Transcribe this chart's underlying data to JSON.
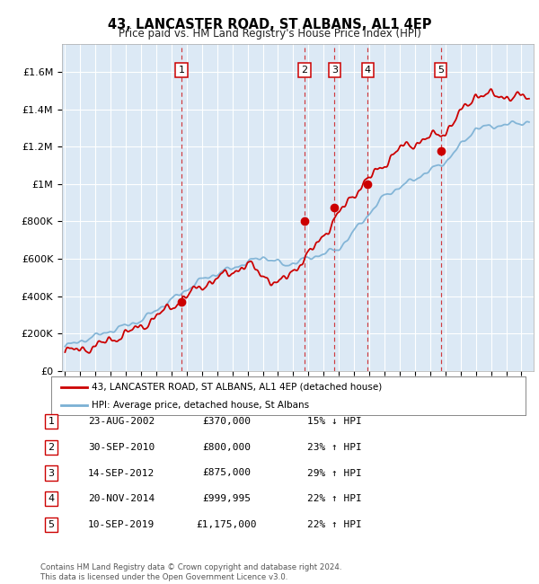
{
  "title": "43, LANCASTER ROAD, ST ALBANS, AL1 4EP",
  "subtitle": "Price paid vs. HM Land Registry's House Price Index (HPI)",
  "bg_color": "#dce9f5",
  "red_color": "#cc0000",
  "blue_color": "#7ab0d4",
  "yticks": [
    0,
    200000,
    400000,
    600000,
    800000,
    1000000,
    1200000,
    1400000,
    1600000
  ],
  "ytick_labels": [
    "£0",
    "£200K",
    "£400K",
    "£600K",
    "£800K",
    "£1M",
    "£1.2M",
    "£1.4M",
    "£1.6M"
  ],
  "ylim": [
    0,
    1750000
  ],
  "xlim_start": 1994.8,
  "xlim_end": 2025.8,
  "sales": [
    {
      "year": 2002.65,
      "price": 370000,
      "label": "1"
    },
    {
      "year": 2010.75,
      "price": 800000,
      "label": "2"
    },
    {
      "year": 2012.71,
      "price": 875000,
      "label": "3"
    },
    {
      "year": 2014.9,
      "price": 999995,
      "label": "4"
    },
    {
      "year": 2019.7,
      "price": 1175000,
      "label": "5"
    }
  ],
  "table_rows": [
    [
      "1",
      "23-AUG-2002",
      "£370,000",
      "15% ↓ HPI"
    ],
    [
      "2",
      "30-SEP-2010",
      "£800,000",
      "23% ↑ HPI"
    ],
    [
      "3",
      "14-SEP-2012",
      "£875,000",
      "29% ↑ HPI"
    ],
    [
      "4",
      "20-NOV-2014",
      "£999,995",
      "22% ↑ HPI"
    ],
    [
      "5",
      "10-SEP-2019",
      "£1,175,000",
      "22% ↑ HPI"
    ]
  ],
  "footer": "Contains HM Land Registry data © Crown copyright and database right 2024.\nThis data is licensed under the Open Government Licence v3.0.",
  "legend_red": "43, LANCASTER ROAD, ST ALBANS, AL1 4EP (detached house)",
  "legend_blue": "HPI: Average price, detached house, St Albans"
}
